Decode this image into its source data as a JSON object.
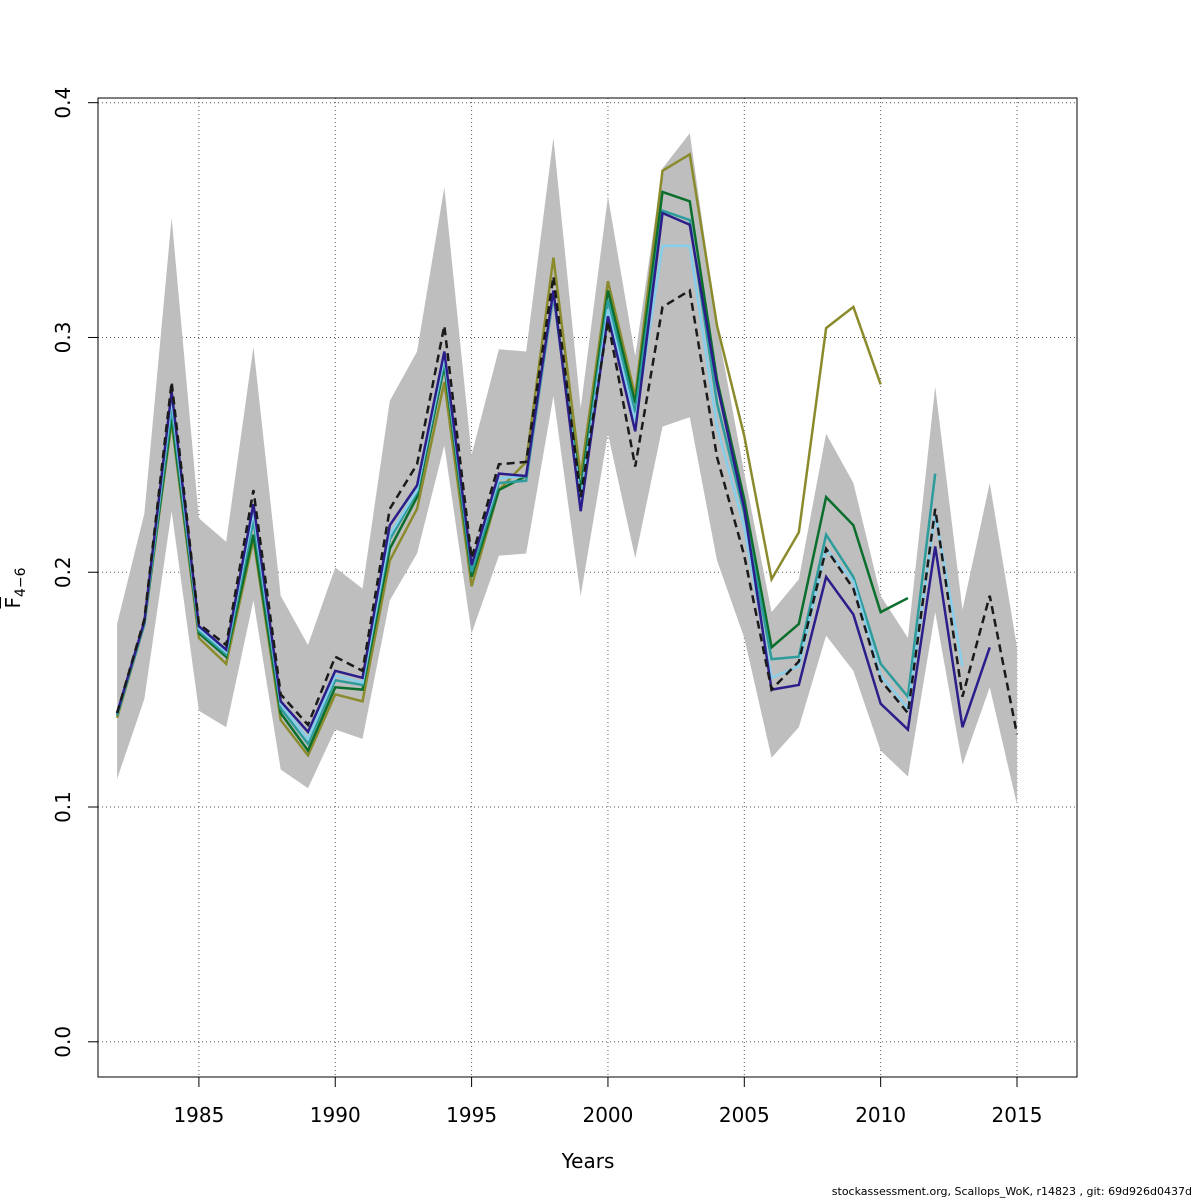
{
  "chart_data": {
    "type": "line",
    "xlabel": "Years",
    "ylabel": "F",
    "ylabel_sub": "4−6",
    "xlim": [
      1981.3,
      2017.2
    ],
    "ylim": [
      -0.015,
      0.402
    ],
    "x_ticks": [
      1985,
      1990,
      1995,
      2000,
      2005,
      2010,
      2015
    ],
    "y_ticks": [
      0.0,
      0.1,
      0.2,
      0.3,
      0.4
    ],
    "x_tick_labels": [
      "1985",
      "1990",
      "1995",
      "2000",
      "2005",
      "2010",
      "2015"
    ],
    "y_tick_labels": [
      "0.0",
      "0.1",
      "0.2",
      "0.3",
      "0.4"
    ],
    "grid": true,
    "band": {
      "color": "#bebebe",
      "x": [
        1982,
        1983,
        1984,
        1985,
        1986,
        1987,
        1988,
        1989,
        1990,
        1991,
        1992,
        1993,
        1994,
        1995,
        1996,
        1997,
        1998,
        1999,
        2000,
        2001,
        2002,
        2003,
        2004,
        2005,
        2006,
        2007,
        2008,
        2009,
        2010,
        2011,
        2012,
        2013,
        2014,
        2015
      ],
      "upper": [
        0.178,
        0.225,
        0.351,
        0.223,
        0.213,
        0.296,
        0.19,
        0.169,
        0.202,
        0.193,
        0.273,
        0.294,
        0.364,
        0.25,
        0.295,
        0.294,
        0.385,
        0.27,
        0.36,
        0.292,
        0.372,
        0.387,
        0.305,
        0.242,
        0.183,
        0.197,
        0.259,
        0.238,
        0.19,
        0.172,
        0.279,
        0.184,
        0.238,
        0.168
      ],
      "lower": [
        0.112,
        0.146,
        0.226,
        0.141,
        0.134,
        0.188,
        0.116,
        0.108,
        0.133,
        0.129,
        0.188,
        0.208,
        0.254,
        0.174,
        0.207,
        0.208,
        0.275,
        0.19,
        0.259,
        0.206,
        0.262,
        0.266,
        0.205,
        0.172,
        0.121,
        0.134,
        0.173,
        0.158,
        0.124,
        0.113,
        0.183,
        0.118,
        0.151,
        0.101
      ]
    },
    "series": [
      {
        "color": "#8b8b2e",
        "dashed": false,
        "x": [
          1982,
          1983,
          1984,
          1985,
          1986,
          1987,
          1988,
          1989,
          1990,
          1991,
          1992,
          1993,
          1994,
          1995,
          1996,
          1997,
          1998,
          1999,
          2000,
          2001,
          2002,
          2003,
          2004,
          2005,
          2006,
          2007,
          2008,
          2009,
          2010
        ],
        "values": [
          0.138,
          0.178,
          0.264,
          0.172,
          0.161,
          0.214,
          0.137,
          0.122,
          0.148,
          0.145,
          0.205,
          0.227,
          0.281,
          0.194,
          0.235,
          0.247,
          0.334,
          0.241,
          0.324,
          0.275,
          0.371,
          0.378,
          0.305,
          0.258,
          0.197,
          0.217,
          0.304,
          0.313,
          0.28
        ]
      },
      {
        "color": "#0b6e2c",
        "dashed": false,
        "x": [
          1982,
          1983,
          1984,
          1985,
          1986,
          1987,
          1988,
          1989,
          1990,
          1991,
          1992,
          1993,
          1994,
          1995,
          1996,
          1997,
          1998,
          1999,
          2000,
          2001,
          2002,
          2003,
          2004,
          2005,
          2006,
          2007,
          2008,
          2009,
          2010,
          2011
        ],
        "values": [
          0.139,
          0.178,
          0.266,
          0.174,
          0.164,
          0.216,
          0.14,
          0.124,
          0.151,
          0.15,
          0.21,
          0.232,
          0.288,
          0.198,
          0.235,
          0.241,
          0.318,
          0.235,
          0.32,
          0.272,
          0.362,
          0.358,
          0.282,
          0.231,
          0.168,
          0.178,
          0.232,
          0.22,
          0.183,
          0.189
        ]
      },
      {
        "color": "#2c9c9c",
        "dashed": false,
        "x": [
          1982,
          1983,
          1984,
          1985,
          1986,
          1987,
          1988,
          1989,
          1990,
          1991,
          1992,
          1993,
          1994,
          1995,
          1996,
          1997,
          1998,
          1999,
          2000,
          2001,
          2002,
          2003,
          2004,
          2005,
          2006,
          2007,
          2008,
          2009,
          2010,
          2011,
          2012
        ],
        "values": [
          0.139,
          0.178,
          0.27,
          0.175,
          0.165,
          0.222,
          0.142,
          0.127,
          0.154,
          0.152,
          0.214,
          0.234,
          0.29,
          0.2,
          0.238,
          0.239,
          0.318,
          0.232,
          0.316,
          0.268,
          0.354,
          0.35,
          0.272,
          0.225,
          0.163,
          0.164,
          0.216,
          0.198,
          0.161,
          0.147,
          0.242
        ]
      },
      {
        "color": "#87ceeb",
        "dashed": false,
        "x": [
          1982,
          1983,
          1984,
          1985,
          1986,
          1987,
          1988,
          1989,
          1990,
          1991,
          1992,
          1993,
          1994,
          1995,
          1996,
          1997,
          1998,
          1999,
          2000,
          2001,
          2002,
          2003,
          2004,
          2005,
          2006,
          2007,
          2008,
          2009,
          2010,
          2011,
          2012,
          2013
        ],
        "values": [
          0.14,
          0.179,
          0.274,
          0.176,
          0.166,
          0.226,
          0.144,
          0.129,
          0.156,
          0.153,
          0.216,
          0.235,
          0.292,
          0.203,
          0.24,
          0.241,
          0.319,
          0.23,
          0.312,
          0.264,
          0.339,
          0.339,
          0.262,
          0.219,
          0.155,
          0.16,
          0.21,
          0.196,
          0.156,
          0.142,
          0.225,
          0.16
        ]
      },
      {
        "color": "#2b1e8a",
        "dashed": false,
        "x": [
          1982,
          1983,
          1984,
          1985,
          1986,
          1987,
          1988,
          1989,
          1990,
          1991,
          1992,
          1993,
          1994,
          1995,
          1996,
          1997,
          1998,
          1999,
          2000,
          2001,
          2002,
          2003,
          2004,
          2005,
          2006,
          2007,
          2008,
          2009,
          2010,
          2011,
          2012,
          2013,
          2014
        ],
        "values": [
          0.14,
          0.179,
          0.277,
          0.177,
          0.167,
          0.229,
          0.145,
          0.132,
          0.158,
          0.155,
          0.22,
          0.237,
          0.294,
          0.203,
          0.242,
          0.241,
          0.32,
          0.226,
          0.309,
          0.26,
          0.353,
          0.348,
          0.28,
          0.227,
          0.15,
          0.152,
          0.198,
          0.182,
          0.144,
          0.133,
          0.211,
          0.134,
          0.168
        ]
      },
      {
        "color": "#1a1a1a",
        "dashed": true,
        "x": [
          1982,
          1983,
          1984,
          1985,
          1986,
          1987,
          1988,
          1989,
          1990,
          1991,
          1992,
          1993,
          1994,
          1995,
          1996,
          1997,
          1998,
          1999,
          2000,
          2001,
          2002,
          2003,
          2004,
          2005,
          2006,
          2007,
          2008,
          2009,
          2010,
          2011,
          2012,
          2013,
          2014,
          2015
        ],
        "values": [
          0.14,
          0.18,
          0.281,
          0.178,
          0.169,
          0.235,
          0.148,
          0.135,
          0.164,
          0.158,
          0.227,
          0.246,
          0.305,
          0.206,
          0.246,
          0.247,
          0.326,
          0.232,
          0.307,
          0.245,
          0.313,
          0.32,
          0.249,
          0.207,
          0.15,
          0.162,
          0.21,
          0.193,
          0.154,
          0.14,
          0.227,
          0.147,
          0.19,
          0.131
        ]
      }
    ]
  },
  "footer": "stockassessment.org, Scallops_WoK, r14823 , git: 69d926d0437d"
}
